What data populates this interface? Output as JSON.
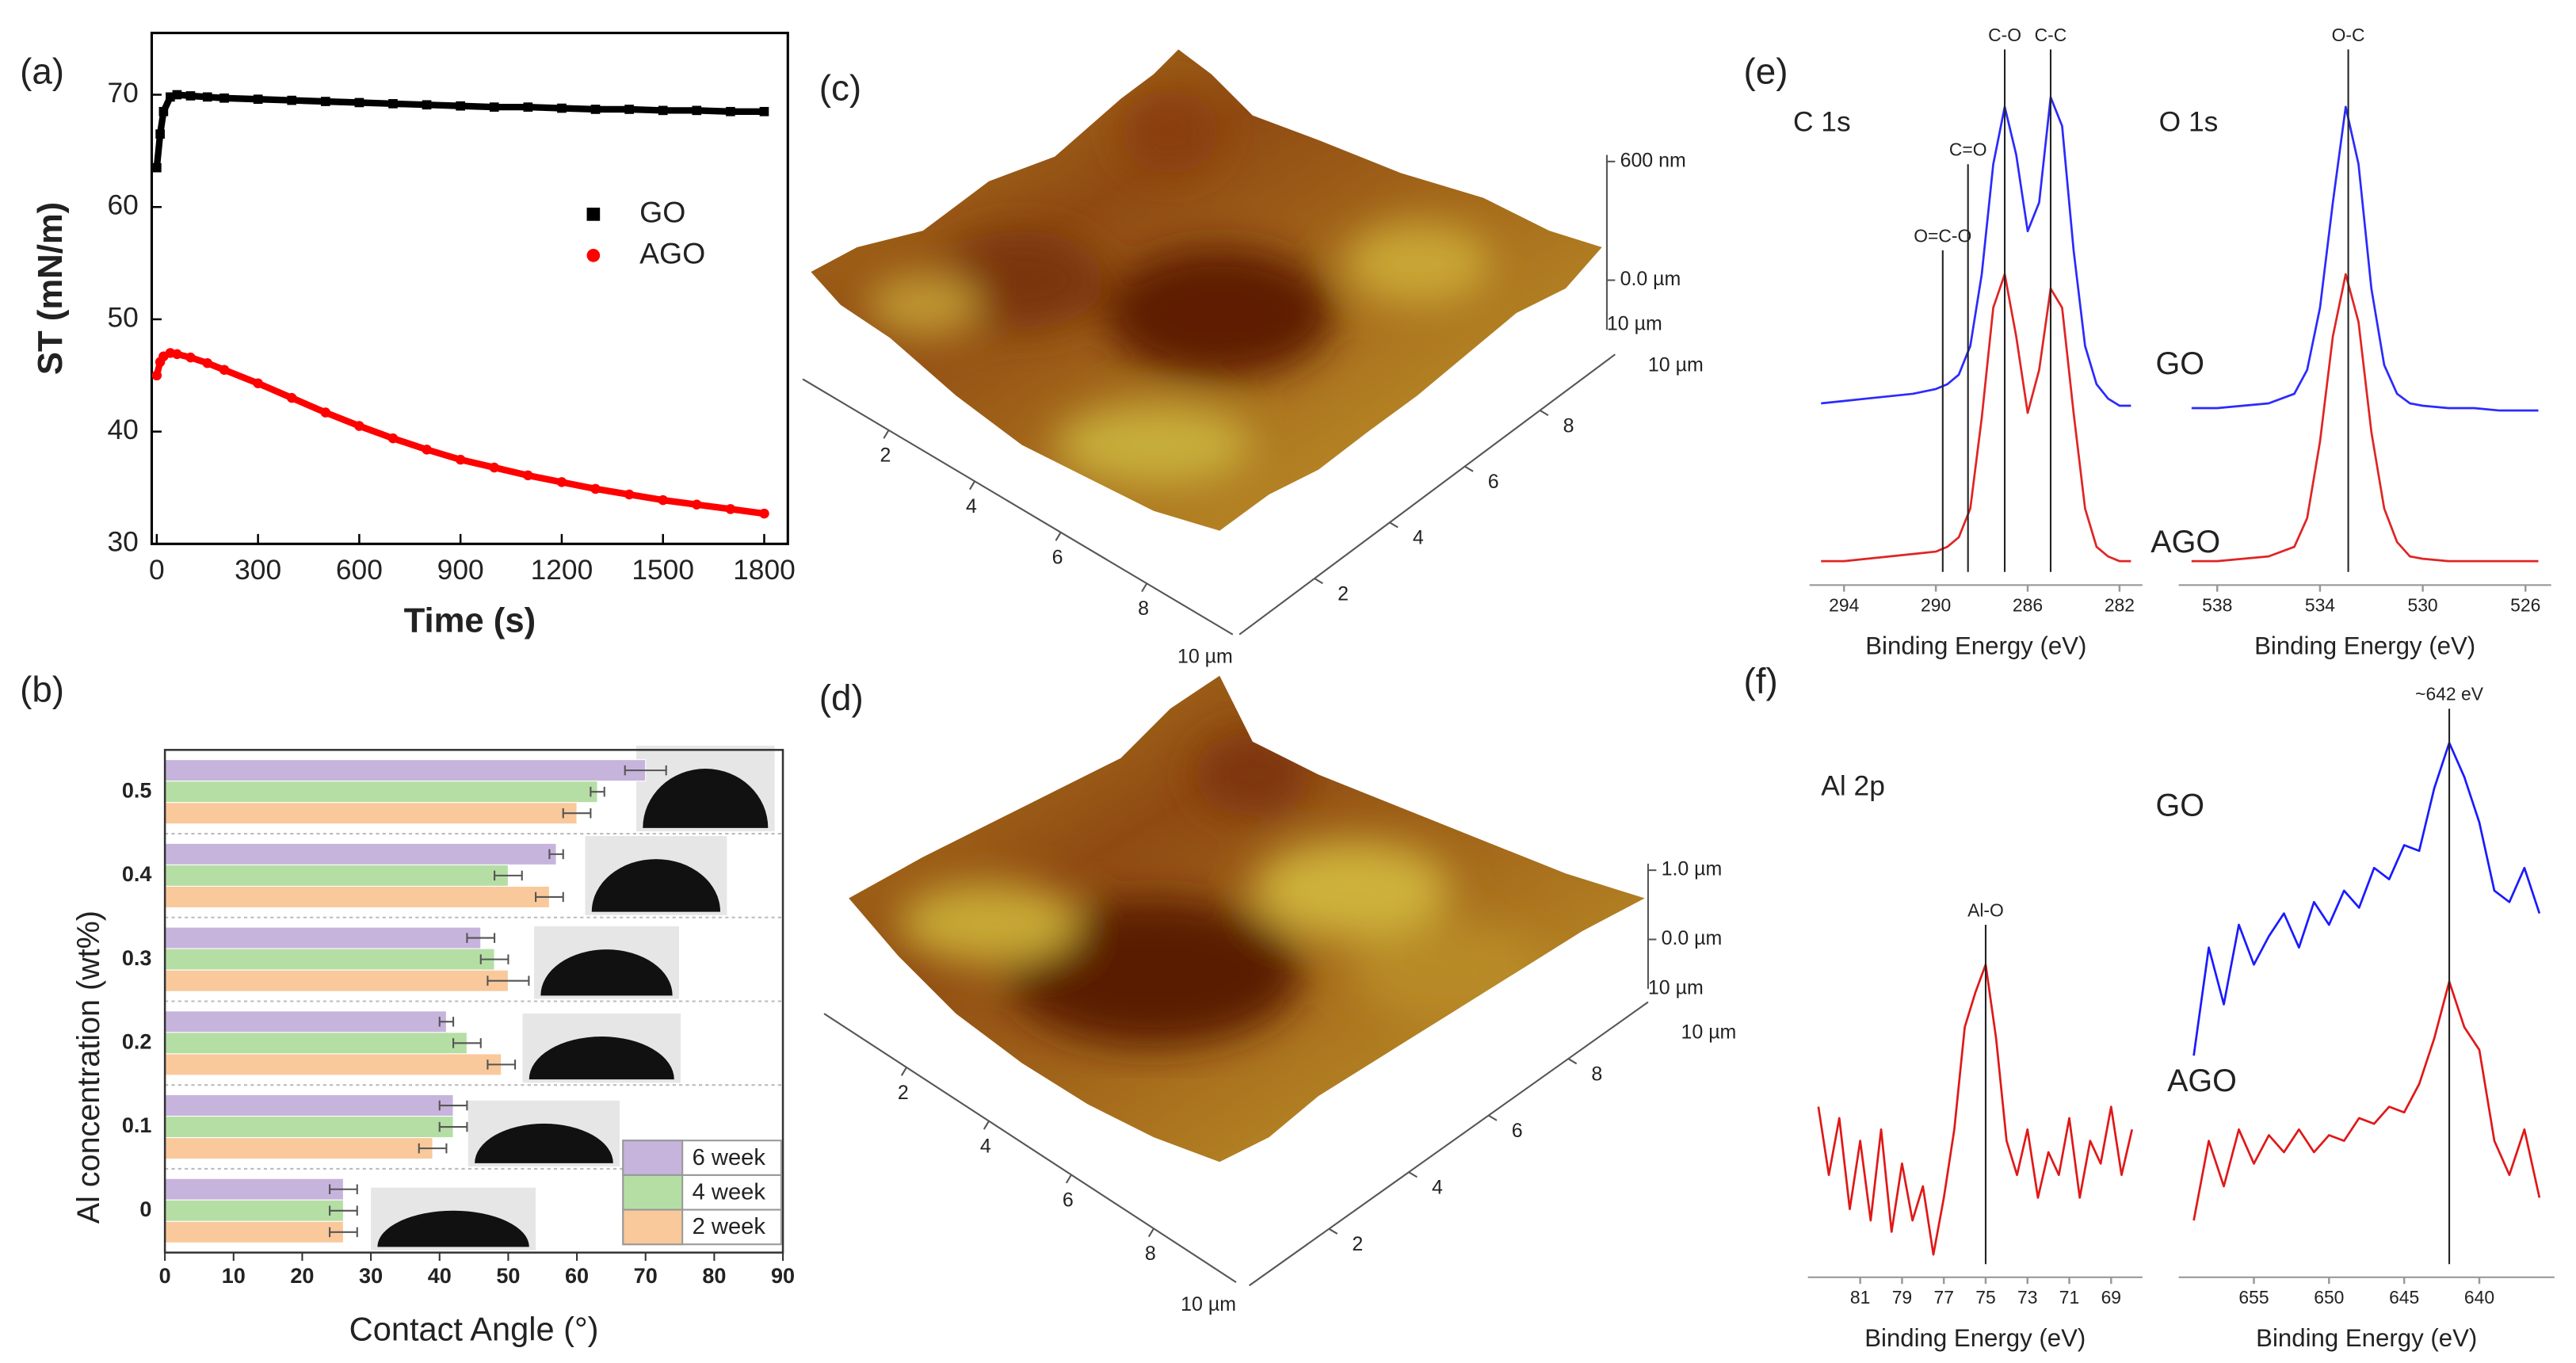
{
  "chart_data": [
    {
      "type": "line",
      "panel": "(a)",
      "x": [
        0,
        10,
        20,
        40,
        60,
        100,
        150,
        200,
        300,
        400,
        500,
        600,
        700,
        800,
        900,
        1000,
        1100,
        1200,
        1300,
        1400,
        1500,
        1600,
        1700,
        1800
      ],
      "series": [
        {
          "name": "GO",
          "color": "#000000",
          "marker": "square",
          "values": [
            63.5,
            66.5,
            68.5,
            69.8,
            70,
            69.9,
            69.8,
            69.7,
            69.6,
            69.5,
            69.4,
            69.3,
            69.2,
            69.1,
            69.0,
            68.9,
            68.9,
            68.8,
            68.7,
            68.7,
            68.6,
            68.6,
            68.5,
            68.5
          ]
        },
        {
          "name": "AGO",
          "color": "#ff0000",
          "marker": "circle",
          "values": [
            45,
            46.2,
            46.7,
            47,
            46.9,
            46.6,
            46.1,
            45.5,
            44.3,
            43.0,
            41.7,
            40.5,
            39.4,
            38.4,
            37.5,
            36.8,
            36.1,
            35.5,
            34.9,
            34.4,
            33.9,
            33.5,
            33.1,
            32.7
          ]
        }
      ],
      "xlim": [
        -15,
        1870
      ],
      "xticks": [
        0,
        300,
        600,
        900,
        1200,
        1500,
        1800
      ],
      "ylim": [
        30,
        75.5
      ],
      "yticks": [
        30,
        40,
        50,
        60,
        70
      ],
      "x_label": "Time (s)",
      "y_label": "ST (mN/m)",
      "legend": "right"
    },
    {
      "type": "bar",
      "orientation": "horizontal",
      "panel": "(b)",
      "categories": [
        "0",
        "0.1",
        "0.2",
        "0.3",
        "0.4",
        "0.5"
      ],
      "series": [
        {
          "name": "6 week",
          "color": "#c7b4dd",
          "values": [
            26,
            42,
            41,
            46,
            57,
            70
          ],
          "errors": [
            2,
            2,
            1,
            2,
            1,
            3
          ]
        },
        {
          "name": "4 week",
          "color": "#b5dea4",
          "values": [
            26,
            42,
            44,
            48,
            50,
            63
          ],
          "errors": [
            2,
            2,
            2,
            2,
            2,
            1
          ]
        },
        {
          "name": "2 week",
          "color": "#f9c99b",
          "values": [
            26,
            39,
            49,
            50,
            56,
            60
          ],
          "errors": [
            2,
            2,
            2,
            3,
            2,
            2
          ]
        }
      ],
      "xlim": [
        0,
        90
      ],
      "xticks": [
        0,
        10,
        20,
        30,
        40,
        50,
        60,
        70,
        80,
        90
      ],
      "x_label": "Contact Angle (°)",
      "y_label": "Al concentration (wt%)",
      "legend": "lower right"
    },
    {
      "type": "surface",
      "panel": "(c)",
      "xticks": [
        2,
        4,
        6,
        8
      ],
      "x_label": "10 µm",
      "yticks": [
        2,
        4,
        6,
        8
      ],
      "zticks": [
        {
          "value": 0.6,
          "label": "600 nm"
        },
        {
          "value": 0,
          "label": "0.0 µm"
        }
      ],
      "corner_labels": [
        "10 µm",
        "10 µm"
      ]
    },
    {
      "type": "surface",
      "panel": "(d)",
      "xticks": [
        2,
        4,
        6,
        8
      ],
      "x_label": "10 µm",
      "yticks": [
        2,
        4,
        6,
        8
      ],
      "zticks": [
        {
          "value": 1.0,
          "label": "1.0 µm"
        },
        {
          "value": 0,
          "label": "0.0 µm"
        }
      ],
      "corner_labels": [
        "10 µm",
        "10 µm"
      ]
    },
    {
      "type": "line",
      "panel": "(e)",
      "labels": [
        "C 1s"
      ],
      "x": [
        295,
        294,
        293,
        292,
        291,
        290,
        289.5,
        289,
        288.5,
        288,
        287.5,
        287,
        286.5,
        286,
        285.5,
        285,
        284.5,
        284,
        283.5,
        283,
        282.5,
        282,
        281.5
      ],
      "series": [
        {
          "name": "GO",
          "color": "#2a2aff",
          "values": [
            38,
            38.5,
            39,
            39.5,
            40,
            41,
            42,
            44,
            50,
            65,
            88,
            100,
            90,
            74,
            80,
            102,
            96,
            70,
            50,
            42,
            39,
            37.5,
            37.5
          ]
        },
        {
          "name": "AGO",
          "color": "#e02424",
          "values": [
            5,
            5,
            5.5,
            6,
            6.5,
            7,
            8,
            10,
            16,
            35,
            58,
            65,
            52,
            36,
            45,
            62,
            58,
            36,
            16,
            8,
            6,
            5,
            5
          ]
        }
      ],
      "xlim": [
        295.5,
        281
      ],
      "xticks": [
        294,
        290,
        286,
        282
      ],
      "ylim": [
        0,
        112
      ],
      "x_label": "Binding Energy (eV)",
      "annotations": [
        {
          "text": "O=C-O",
          "x": 289.7,
          "y": 70
        },
        {
          "text": "C=O",
          "x": 288.6,
          "y": 88
        },
        {
          "text": "C-O",
          "x": 287,
          "y": 112
        },
        {
          "text": "C-C",
          "x": 285,
          "y": 112
        }
      ]
    },
    {
      "type": "line",
      "labels": [
        "O 1s"
      ],
      "x": [
        539,
        538,
        537,
        536,
        535,
        534.5,
        534,
        533.5,
        533,
        532.5,
        532,
        531.5,
        531,
        530.5,
        530,
        529,
        528,
        527,
        526,
        525.5
      ],
      "series": [
        {
          "color": "#2a2aff",
          "values": [
            37,
            37,
            37.5,
            38,
            40,
            45,
            58,
            80,
            100,
            88,
            62,
            46,
            40,
            38,
            37.5,
            37,
            37,
            36.5,
            36.5,
            36.5
          ]
        },
        {
          "color": "#e02424",
          "values": [
            5,
            5,
            5.5,
            6,
            8,
            14,
            30,
            52,
            65,
            55,
            32,
            16,
            9,
            6,
            5.5,
            5,
            5,
            5,
            5,
            5
          ]
        }
      ],
      "xlim": [
        539.5,
        525
      ],
      "xticks": [
        538,
        534,
        530,
        526
      ],
      "ylim": [
        0,
        112
      ],
      "x_label": "Binding Energy (eV)",
      "annotations": [
        {
          "text": "O-C",
          "x": 532.9,
          "y": 112
        }
      ]
    },
    {
      "type": "line",
      "panel": "(f)",
      "labels": [
        "Al 2p"
      ],
      "x": [
        83,
        82.5,
        82,
        81.5,
        81,
        80.5,
        80,
        79.5,
        79,
        78.5,
        78,
        77.5,
        77,
        76.5,
        76,
        75.5,
        75,
        74.5,
        74,
        73.5,
        73,
        72.5,
        72,
        71.5,
        71,
        70.5,
        70,
        69.5,
        69,
        68.5,
        68
      ],
      "series": [
        {
          "color": "#e01818",
          "values": [
            30,
            18,
            28,
            12,
            24,
            10,
            26,
            8,
            20,
            10,
            16,
            4,
            14,
            26,
            44,
            50,
            55,
            42,
            24,
            18,
            26,
            14,
            22,
            18,
            28,
            14,
            24,
            20,
            30,
            18,
            26
          ]
        }
      ],
      "xlim": [
        83.5,
        67.5
      ],
      "xticks": [
        81,
        79,
        77,
        75,
        73,
        71,
        69
      ],
      "ylim": [
        0,
        100
      ],
      "x_label": "Binding Energy (eV)",
      "annotations": [
        {
          "text": "Al-O",
          "x": 75,
          "y": 62
        }
      ]
    },
    {
      "type": "line",
      "x": [
        659,
        658,
        657,
        656,
        655,
        654,
        653,
        652,
        651,
        650,
        649,
        648,
        647,
        646,
        645,
        644,
        643,
        642,
        641,
        640,
        639,
        638,
        637,
        636
      ],
      "series": [
        {
          "name": "GO",
          "color": "#1a1aff",
          "values": [
            39,
            58,
            48,
            62,
            55,
            60,
            64,
            58,
            66,
            62,
            68,
            65,
            72,
            70,
            76,
            75,
            86,
            94,
            88,
            80,
            68,
            66,
            72,
            64
          ]
        },
        {
          "name": "AGO",
          "color": "#e01818",
          "values": [
            10,
            24,
            16,
            26,
            20,
            25,
            22,
            26,
            22,
            25,
            24,
            28,
            27,
            30,
            29,
            34,
            42,
            52,
            44,
            40,
            24,
            18,
            26,
            14
          ]
        }
      ],
      "xlim": [
        660,
        635
      ],
      "xticks": [
        655,
        650,
        645,
        640
      ],
      "ylim": [
        0,
        100
      ],
      "x_label": "Binding Energy (eV)",
      "annotations": [
        {
          "text": "~642 eV",
          "x": 642,
          "y": 100
        }
      ]
    }
  ]
}
